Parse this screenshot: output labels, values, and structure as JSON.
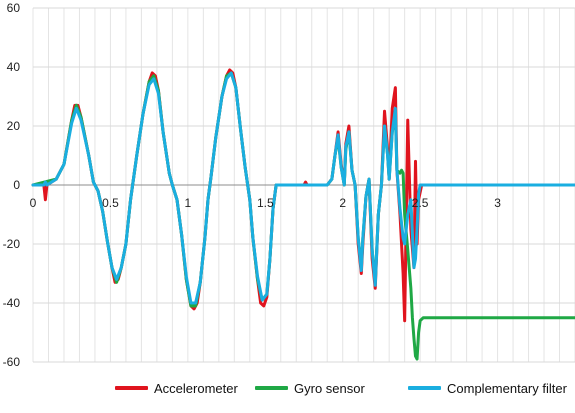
{
  "chart_data": {
    "type": "line",
    "title": "",
    "xlabel": "",
    "ylabel": "",
    "xlim": [
      0,
      3.5
    ],
    "ylim": [
      -60,
      60
    ],
    "x_ticks": [
      0,
      0.5,
      1,
      1.5,
      2,
      2.5,
      3
    ],
    "x_tick_labels": [
      "0",
      "0.5",
      "1",
      "1.5",
      "2",
      "2.5",
      "3"
    ],
    "y_ticks": [
      -60,
      -40,
      -20,
      0,
      20,
      40,
      60
    ],
    "y_tick_labels": [
      "-60",
      "-40",
      "-20",
      "0",
      "20",
      "40",
      "60"
    ],
    "grid": true,
    "legend_position": "bottom",
    "series": [
      {
        "name": "Accelerometer",
        "color": "#e0141e",
        "points": [
          [
            0,
            0
          ],
          [
            0.07,
            0
          ],
          [
            0.08,
            -5
          ],
          [
            0.09,
            0
          ],
          [
            0.15,
            2
          ],
          [
            0.2,
            7
          ],
          [
            0.25,
            22
          ],
          [
            0.27,
            27
          ],
          [
            0.29,
            27
          ],
          [
            0.31,
            23
          ],
          [
            0.36,
            10
          ],
          [
            0.39,
            1
          ],
          [
            0.42,
            -2
          ],
          [
            0.45,
            -9
          ],
          [
            0.48,
            -19
          ],
          [
            0.51,
            -28
          ],
          [
            0.53,
            -33
          ],
          [
            0.55,
            -32
          ],
          [
            0.57,
            -28
          ],
          [
            0.6,
            -20
          ],
          [
            0.63,
            -5
          ],
          [
            0.67,
            10
          ],
          [
            0.71,
            24
          ],
          [
            0.75,
            35
          ],
          [
            0.77,
            38
          ],
          [
            0.79,
            37
          ],
          [
            0.81,
            32
          ],
          [
            0.84,
            18
          ],
          [
            0.88,
            4
          ],
          [
            0.9,
            0
          ],
          [
            0.93,
            -5
          ],
          [
            0.96,
            -17
          ],
          [
            0.99,
            -32
          ],
          [
            1.02,
            -41
          ],
          [
            1.04,
            -42
          ],
          [
            1.06,
            -40
          ],
          [
            1.08,
            -33
          ],
          [
            1.11,
            -18
          ],
          [
            1.13,
            -5
          ],
          [
            1.15,
            3
          ],
          [
            1.18,
            16
          ],
          [
            1.22,
            30
          ],
          [
            1.25,
            37
          ],
          [
            1.27,
            39
          ],
          [
            1.29,
            38
          ],
          [
            1.31,
            33
          ],
          [
            1.34,
            19
          ],
          [
            1.37,
            6
          ],
          [
            1.4,
            -5
          ],
          [
            1.42,
            -18
          ],
          [
            1.45,
            -32
          ],
          [
            1.47,
            -40
          ],
          [
            1.49,
            -41
          ],
          [
            1.51,
            -38
          ],
          [
            1.53,
            -25
          ],
          [
            1.55,
            -8
          ],
          [
            1.57,
            0
          ],
          [
            1.6,
            0
          ],
          [
            1.75,
            0
          ],
          [
            1.76,
            1
          ],
          [
            1.77,
            0
          ],
          [
            1.9,
            0
          ],
          [
            1.93,
            2
          ],
          [
            1.95,
            10
          ],
          [
            1.97,
            18
          ],
          [
            1.99,
            7
          ],
          [
            2.01,
            0
          ],
          [
            2.02,
            14
          ],
          [
            2.04,
            20
          ],
          [
            2.06,
            5
          ],
          [
            2.08,
            0
          ],
          [
            2.1,
            -20
          ],
          [
            2.12,
            -30
          ],
          [
            2.13,
            -20
          ],
          [
            2.15,
            -4
          ],
          [
            2.17,
            2
          ],
          [
            2.19,
            -25
          ],
          [
            2.21,
            -35
          ],
          [
            2.23,
            -10
          ],
          [
            2.25,
            0
          ],
          [
            2.27,
            25
          ],
          [
            2.29,
            12
          ],
          [
            2.3,
            2
          ],
          [
            2.32,
            26
          ],
          [
            2.34,
            33
          ],
          [
            2.35,
            5
          ],
          [
            2.37,
            -10
          ],
          [
            2.39,
            -30
          ],
          [
            2.4,
            -46
          ],
          [
            2.42,
            22
          ],
          [
            2.44,
            -15
          ],
          [
            2.46,
            -28
          ],
          [
            2.47,
            8
          ],
          [
            2.48,
            -20
          ],
          [
            2.49,
            -5
          ],
          [
            2.51,
            0
          ],
          [
            2.6,
            0
          ],
          [
            2.9,
            0
          ],
          [
            3.5,
            0
          ]
        ]
      },
      {
        "name": "Gyro sensor",
        "color": "#1fa845",
        "points": [
          [
            0,
            0
          ],
          [
            0.15,
            2
          ],
          [
            0.2,
            7
          ],
          [
            0.25,
            22
          ],
          [
            0.28,
            27
          ],
          [
            0.31,
            23
          ],
          [
            0.36,
            10
          ],
          [
            0.39,
            1
          ],
          [
            0.42,
            -2
          ],
          [
            0.45,
            -9
          ],
          [
            0.48,
            -19
          ],
          [
            0.51,
            -28
          ],
          [
            0.54,
            -33
          ],
          [
            0.57,
            -28
          ],
          [
            0.6,
            -20
          ],
          [
            0.63,
            -5
          ],
          [
            0.67,
            10
          ],
          [
            0.71,
            24
          ],
          [
            0.75,
            35
          ],
          [
            0.78,
            37
          ],
          [
            0.81,
            32
          ],
          [
            0.84,
            18
          ],
          [
            0.88,
            4
          ],
          [
            0.9,
            0
          ],
          [
            0.93,
            -5
          ],
          [
            0.96,
            -17
          ],
          [
            0.99,
            -32
          ],
          [
            1.02,
            -41
          ],
          [
            1.05,
            -41
          ],
          [
            1.08,
            -33
          ],
          [
            1.11,
            -18
          ],
          [
            1.13,
            -5
          ],
          [
            1.15,
            3
          ],
          [
            1.18,
            16
          ],
          [
            1.22,
            30
          ],
          [
            1.25,
            37
          ],
          [
            1.28,
            38
          ],
          [
            1.31,
            33
          ],
          [
            1.34,
            19
          ],
          [
            1.37,
            6
          ],
          [
            1.4,
            -5
          ],
          [
            1.42,
            -18
          ],
          [
            1.45,
            -32
          ],
          [
            1.48,
            -39
          ],
          [
            1.51,
            -37
          ],
          [
            1.53,
            -25
          ],
          [
            1.55,
            -8
          ],
          [
            1.57,
            0
          ],
          [
            1.9,
            0
          ],
          [
            1.93,
            2
          ],
          [
            1.95,
            10
          ],
          [
            1.97,
            16
          ],
          [
            1.99,
            6
          ],
          [
            2.01,
            0
          ],
          [
            2.02,
            12
          ],
          [
            2.04,
            18
          ],
          [
            2.06,
            5
          ],
          [
            2.08,
            0
          ],
          [
            2.1,
            -18
          ],
          [
            2.12,
            -28
          ],
          [
            2.13,
            -18
          ],
          [
            2.15,
            -4
          ],
          [
            2.17,
            2
          ],
          [
            2.19,
            -22
          ],
          [
            2.21,
            -33
          ],
          [
            2.23,
            -10
          ],
          [
            2.25,
            0
          ],
          [
            2.27,
            20
          ],
          [
            2.29,
            10
          ],
          [
            2.3,
            2
          ],
          [
            2.32,
            18
          ],
          [
            2.34,
            24
          ],
          [
            2.35,
            5
          ],
          [
            2.37,
            4
          ],
          [
            2.38,
            5
          ],
          [
            2.39,
            4
          ],
          [
            2.4,
            -10
          ],
          [
            2.42,
            -22
          ],
          [
            2.44,
            -35
          ],
          [
            2.45,
            -45
          ],
          [
            2.46,
            -52
          ],
          [
            2.47,
            -58
          ],
          [
            2.48,
            -59
          ],
          [
            2.49,
            -50
          ],
          [
            2.5,
            -46
          ],
          [
            2.52,
            -45
          ],
          [
            3.5,
            -45
          ]
        ]
      },
      {
        "name": "Complementary filter",
        "color": "#1aaee0",
        "points": [
          [
            0,
            0
          ],
          [
            0.07,
            0
          ],
          [
            0.08,
            1
          ],
          [
            0.09,
            0
          ],
          [
            0.15,
            2
          ],
          [
            0.2,
            7
          ],
          [
            0.25,
            21
          ],
          [
            0.28,
            26
          ],
          [
            0.31,
            22
          ],
          [
            0.36,
            10
          ],
          [
            0.39,
            1
          ],
          [
            0.42,
            -2
          ],
          [
            0.45,
            -9
          ],
          [
            0.48,
            -19
          ],
          [
            0.51,
            -28
          ],
          [
            0.54,
            -32
          ],
          [
            0.57,
            -28
          ],
          [
            0.6,
            -20
          ],
          [
            0.63,
            -5
          ],
          [
            0.67,
            10
          ],
          [
            0.71,
            24
          ],
          [
            0.75,
            34
          ],
          [
            0.78,
            36
          ],
          [
            0.81,
            31
          ],
          [
            0.84,
            18
          ],
          [
            0.88,
            4
          ],
          [
            0.9,
            0
          ],
          [
            0.93,
            -5
          ],
          [
            0.96,
            -17
          ],
          [
            0.99,
            -31
          ],
          [
            1.02,
            -40
          ],
          [
            1.05,
            -40
          ],
          [
            1.08,
            -33
          ],
          [
            1.11,
            -18
          ],
          [
            1.13,
            -5
          ],
          [
            1.15,
            3
          ],
          [
            1.18,
            16
          ],
          [
            1.22,
            30
          ],
          [
            1.25,
            36
          ],
          [
            1.28,
            38
          ],
          [
            1.31,
            33
          ],
          [
            1.34,
            19
          ],
          [
            1.37,
            6
          ],
          [
            1.4,
            -5
          ],
          [
            1.42,
            -18
          ],
          [
            1.45,
            -31
          ],
          [
            1.48,
            -39
          ],
          [
            1.51,
            -37
          ],
          [
            1.53,
            -25
          ],
          [
            1.55,
            -8
          ],
          [
            1.57,
            0
          ],
          [
            1.9,
            0
          ],
          [
            1.93,
            2
          ],
          [
            1.95,
            10
          ],
          [
            1.97,
            17
          ],
          [
            1.99,
            6
          ],
          [
            2.01,
            0
          ],
          [
            2.02,
            13
          ],
          [
            2.04,
            18
          ],
          [
            2.06,
            5
          ],
          [
            2.08,
            0
          ],
          [
            2.1,
            -18
          ],
          [
            2.12,
            -29
          ],
          [
            2.13,
            -18
          ],
          [
            2.15,
            -4
          ],
          [
            2.17,
            2
          ],
          [
            2.19,
            -22
          ],
          [
            2.21,
            -34
          ],
          [
            2.23,
            -10
          ],
          [
            2.25,
            0
          ],
          [
            2.27,
            20
          ],
          [
            2.29,
            10
          ],
          [
            2.3,
            2
          ],
          [
            2.32,
            18
          ],
          [
            2.34,
            26
          ],
          [
            2.35,
            5
          ],
          [
            2.37,
            -8
          ],
          [
            2.39,
            -18
          ],
          [
            2.4,
            -20
          ],
          [
            2.42,
            -10
          ],
          [
            2.44,
            -5
          ],
          [
            2.46,
            -28
          ],
          [
            2.47,
            -25
          ],
          [
            2.48,
            -15
          ],
          [
            2.49,
            -3
          ],
          [
            2.5,
            0
          ],
          [
            2.52,
            0
          ],
          [
            3.5,
            0
          ]
        ]
      }
    ]
  }
}
